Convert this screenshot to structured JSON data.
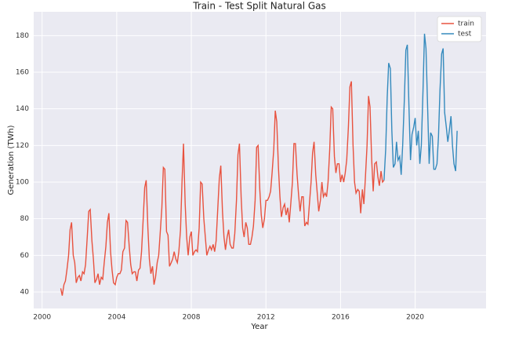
{
  "chart_data": {
    "type": "line",
    "title": "Train - Test Split Natural Gas",
    "x_label": "Year",
    "y_label": "Generation (TWh)",
    "xlim": [
      1999.55,
      2023.8
    ],
    "ylim": [
      31,
      193
    ],
    "xticks": [
      2000,
      2004,
      2008,
      2012,
      2016,
      2020
    ],
    "yticks": [
      40,
      60,
      80,
      100,
      120,
      140,
      160,
      180
    ],
    "grid": true,
    "legend": "upper right",
    "series": [
      {
        "name": "train",
        "color": "#e8523f",
        "x": [
          2001.0,
          2001.08,
          2001.17,
          2001.25,
          2001.33,
          2001.42,
          2001.5,
          2001.58,
          2001.67,
          2001.75,
          2001.83,
          2001.92,
          2002.0,
          2002.08,
          2002.17,
          2002.25,
          2002.33,
          2002.42,
          2002.5,
          2002.58,
          2002.67,
          2002.75,
          2002.83,
          2002.92,
          2003.0,
          2003.08,
          2003.17,
          2003.25,
          2003.33,
          2003.42,
          2003.5,
          2003.58,
          2003.67,
          2003.75,
          2003.83,
          2003.92,
          2004.0,
          2004.08,
          2004.17,
          2004.25,
          2004.33,
          2004.42,
          2004.5,
          2004.58,
          2004.67,
          2004.75,
          2004.83,
          2004.92,
          2005.0,
          2005.08,
          2005.17,
          2005.25,
          2005.33,
          2005.42,
          2005.5,
          2005.58,
          2005.67,
          2005.75,
          2005.83,
          2005.92,
          2006.0,
          2006.08,
          2006.17,
          2006.25,
          2006.33,
          2006.42,
          2006.5,
          2006.58,
          2006.67,
          2006.75,
          2006.83,
          2006.92,
          2007.0,
          2007.08,
          2007.17,
          2007.25,
          2007.33,
          2007.42,
          2007.5,
          2007.58,
          2007.67,
          2007.75,
          2007.83,
          2007.92,
          2008.0,
          2008.08,
          2008.17,
          2008.25,
          2008.33,
          2008.42,
          2008.5,
          2008.58,
          2008.67,
          2008.75,
          2008.83,
          2008.92,
          2009.0,
          2009.08,
          2009.17,
          2009.25,
          2009.33,
          2009.42,
          2009.5,
          2009.58,
          2009.67,
          2009.75,
          2009.83,
          2009.92,
          2010.0,
          2010.08,
          2010.17,
          2010.25,
          2010.33,
          2010.42,
          2010.5,
          2010.58,
          2010.67,
          2010.75,
          2010.83,
          2010.92,
          2011.0,
          2011.08,
          2011.17,
          2011.25,
          2011.33,
          2011.42,
          2011.5,
          2011.58,
          2011.67,
          2011.75,
          2011.83,
          2011.92,
          2012.0,
          2012.08,
          2012.17,
          2012.25,
          2012.33,
          2012.42,
          2012.5,
          2012.58,
          2012.67,
          2012.75,
          2012.83,
          2012.92,
          2013.0,
          2013.08,
          2013.17,
          2013.25,
          2013.33,
          2013.42,
          2013.5,
          2013.58,
          2013.67,
          2013.75,
          2013.83,
          2013.92,
          2014.0,
          2014.08,
          2014.17,
          2014.25,
          2014.33,
          2014.42,
          2014.5,
          2014.58,
          2014.67,
          2014.75,
          2014.83,
          2014.92,
          2015.0,
          2015.08,
          2015.17,
          2015.25,
          2015.33,
          2015.42,
          2015.5,
          2015.58,
          2015.67,
          2015.75,
          2015.83,
          2015.92,
          2016.0,
          2016.08,
          2016.17,
          2016.25,
          2016.33,
          2016.42,
          2016.5,
          2016.58,
          2016.67,
          2016.75,
          2016.83,
          2016.92,
          2017.0,
          2017.08,
          2017.17,
          2017.25,
          2017.33,
          2017.42,
          2017.5,
          2017.58,
          2017.67,
          2017.75,
          2017.83,
          2017.92,
          2018.0,
          2018.08,
          2018.17,
          2018.25,
          2018.33
        ],
        "values": [
          42,
          38,
          44,
          46,
          52,
          60,
          74,
          78,
          60,
          56,
          45,
          48,
          49,
          46,
          51,
          50,
          55,
          70,
          84,
          85,
          68,
          58,
          45,
          47,
          50,
          44,
          48,
          47,
          56,
          65,
          78,
          83,
          62,
          52,
          45,
          44,
          48,
          50,
          50,
          52,
          62,
          64,
          79,
          78,
          65,
          55,
          50,
          51,
          51,
          46,
          52,
          53,
          62,
          80,
          97,
          101,
          75,
          58,
          50,
          54,
          44,
          48,
          56,
          60,
          72,
          86,
          108,
          107,
          73,
          71,
          54,
          56,
          58,
          62,
          58,
          56,
          62,
          74,
          100,
          121,
          88,
          70,
          60,
          70,
          73,
          60,
          62,
          63,
          62,
          75,
          100,
          99,
          80,
          70,
          60,
          63,
          65,
          63,
          66,
          62,
          68,
          86,
          102,
          109,
          84,
          70,
          63,
          70,
          74,
          66,
          64,
          64,
          72,
          90,
          115,
          121,
          92,
          75,
          70,
          78,
          75,
          66,
          66,
          70,
          76,
          90,
          119,
          120,
          96,
          82,
          75,
          80,
          90,
          90,
          92,
          95,
          105,
          118,
          139,
          133,
          108,
          92,
          81,
          86,
          88,
          82,
          86,
          78,
          88,
          100,
          121,
          121,
          104,
          93,
          84,
          92,
          92,
          76,
          78,
          77,
          88,
          100,
          116,
          122,
          104,
          94,
          84,
          90,
          100,
          92,
          94,
          92,
          100,
          118,
          141,
          140,
          114,
          105,
          110,
          110,
          100,
          104,
          100,
          105,
          112,
          130,
          152,
          155,
          120,
          100,
          94,
          96,
          95,
          83,
          96,
          88,
          102,
          120,
          147,
          141,
          112,
          95,
          110,
          111,
          103,
          98,
          106,
          100,
          101
        ]
      },
      {
        "name": "test",
        "color": "#348abd",
        "x": [
          2018.33,
          2018.42,
          2018.5,
          2018.58,
          2018.67,
          2018.75,
          2018.83,
          2018.92,
          2019.0,
          2019.08,
          2019.17,
          2019.25,
          2019.33,
          2019.42,
          2019.5,
          2019.58,
          2019.67,
          2019.75,
          2019.83,
          2019.92,
          2020.0,
          2020.08,
          2020.17,
          2020.25,
          2020.33,
          2020.42,
          2020.5,
          2020.58,
          2020.67,
          2020.75,
          2020.83,
          2020.92,
          2021.0,
          2021.08,
          2021.17,
          2021.25,
          2021.33,
          2021.42,
          2021.5,
          2021.58,
          2021.67,
          2021.75,
          2021.83,
          2021.92,
          2022.0,
          2022.08,
          2022.17,
          2022.25
        ],
        "values": [
          101,
          118,
          146,
          165,
          162,
          128,
          108,
          110,
          122,
          112,
          114,
          104,
          120,
          145,
          172,
          175,
          140,
          112,
          126,
          130,
          135,
          120,
          128,
          110,
          120,
          150,
          181,
          173,
          140,
          110,
          127,
          125,
          107,
          107,
          110,
          125,
          150,
          170,
          173,
          138,
          130,
          122,
          128,
          136,
          120,
          110,
          106,
          128
        ]
      }
    ]
  }
}
